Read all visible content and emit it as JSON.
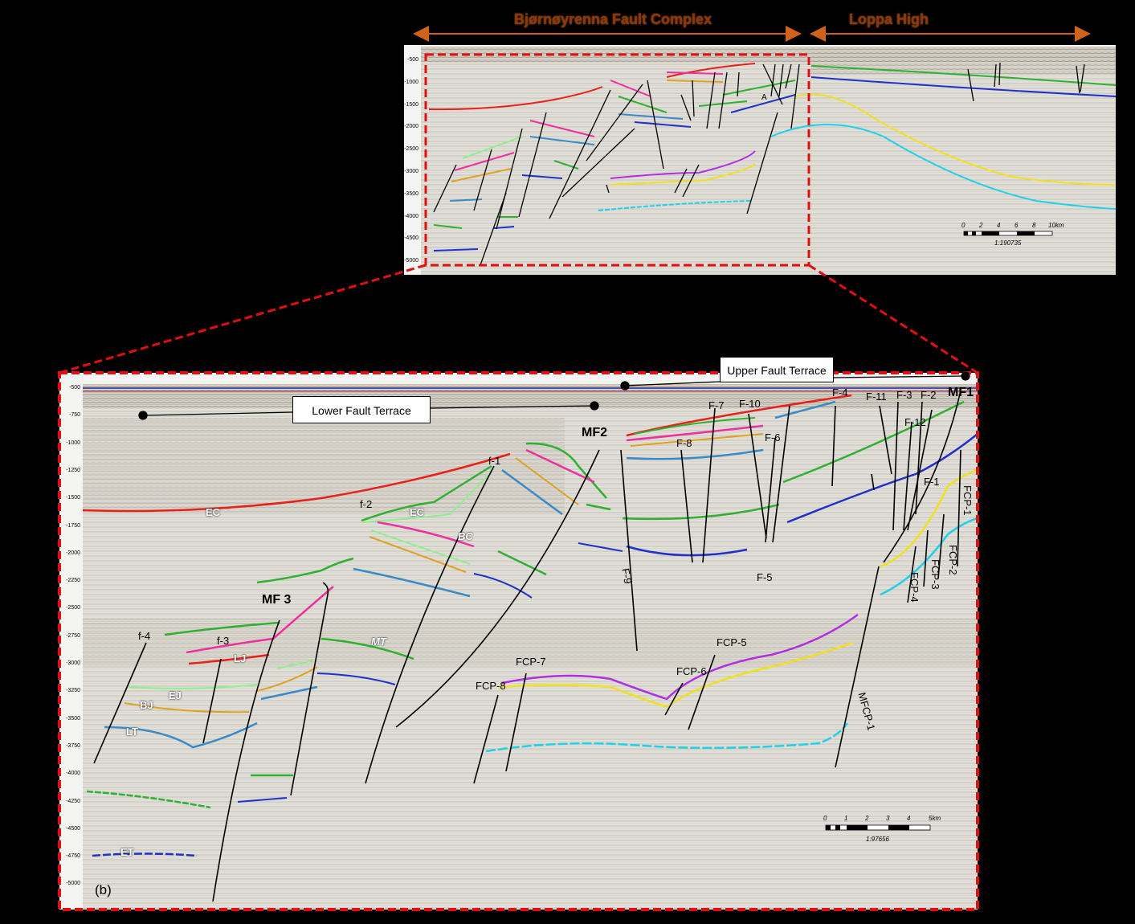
{
  "regions": {
    "left": "Bjørnøyrenna Fault Complex",
    "right": "Loppa High"
  },
  "callouts": {
    "upper": "Upper Fault Terrace",
    "lower": "Lower Fault Terrace"
  },
  "panel_b_label": "(b)",
  "top_depth_ticks": [
    "-500",
    "-1000",
    "-1500",
    "-2000",
    "-2500",
    "-3000",
    "-3500",
    "-4000",
    "-4500",
    "-5000"
  ],
  "bottom_depth_ticks": [
    "-500",
    "-750",
    "-1000",
    "-1250",
    "-1500",
    "-1750",
    "-2000",
    "-2250",
    "-2500",
    "-2750",
    "-3000",
    "-3250",
    "-3500",
    "-3750",
    "-4000",
    "-4250",
    "-4500",
    "-4750",
    "-5000"
  ],
  "top_scale": {
    "ticks": [
      "0",
      "2",
      "4",
      "6",
      "8",
      "10km"
    ],
    "ratio": "1:190735"
  },
  "bottom_scale": {
    "ticks": [
      "0",
      "1",
      "2",
      "3",
      "4",
      "5km"
    ],
    "ratio": "1:97656"
  },
  "faults": [
    "MF1",
    "MF2",
    "MF 3",
    "f-1",
    "f-2",
    "f-3",
    "f-4",
    "F-1",
    "F-2",
    "F-3",
    "F-4",
    "F-5",
    "F-6",
    "F-7",
    "F-8",
    "F-9",
    "F-10",
    "F-11",
    "F-12",
    "FCP-1",
    "FCP-2",
    "FCP-3",
    "FCP-4",
    "FCP-5",
    "FCP-6",
    "FCP-7",
    "FCP-8",
    "MFCP-1"
  ],
  "horizons": [
    "EC",
    "BC",
    "MT",
    "LJ",
    "EJ",
    "BJ",
    "LT",
    "ET"
  ],
  "top_marker": "A",
  "colors": {
    "red": "#e8201a",
    "green": "#30b030",
    "lightgreen": "#90ee90",
    "magenta": "#ee2fa0",
    "pink": "#f060b0",
    "orange": "#e0a020",
    "blue": "#2030c8",
    "steelblue": "#3a8ac8",
    "yellow": "#f0e020",
    "cyan": "#20d0e8",
    "purple": "#b030e0",
    "dashed_frame": "#e01010",
    "region_arrow": "#d0621c"
  }
}
